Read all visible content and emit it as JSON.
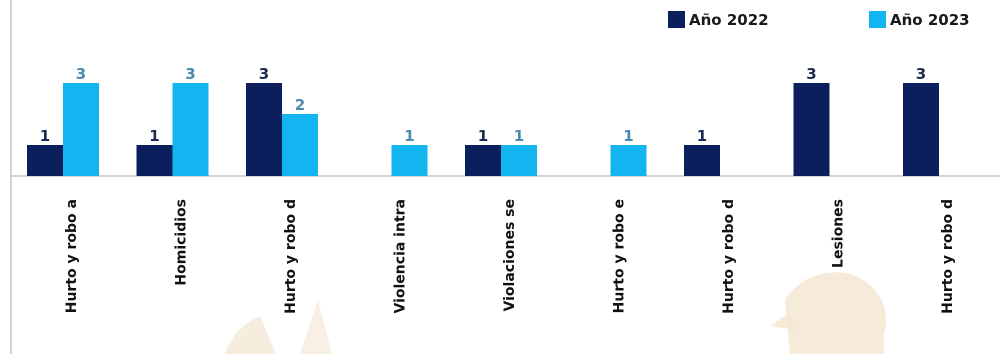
{
  "colors": {
    "series_2022": "#0b1f5c",
    "series_2023": "#12b5ef",
    "label_2022": "#1d2a52",
    "label_2023": "#4a8ab0",
    "frame": "#a8a8a8",
    "watermark": "#f4e6d2"
  },
  "chart_data": {
    "type": "bar",
    "categories": [
      "Hurto y robo a",
      "Homicidios",
      "Hurto y robo d",
      "Violencia intra",
      "Violaciones se",
      "Hurto y robo e",
      "Hurto y robo d",
      "Lesiones",
      "Hurto y robo d"
    ],
    "series": [
      {
        "name": "Año 2022",
        "values": [
          1,
          1,
          3,
          0,
          1,
          0,
          1,
          3,
          3
        ]
      },
      {
        "name": "Año 2023",
        "values": [
          3,
          3,
          2,
          1,
          1,
          1,
          0,
          0,
          0
        ]
      }
    ],
    "value_labels": [
      [
        "1",
        "1",
        "3",
        "",
        "1",
        "",
        "1",
        "3",
        "3"
      ],
      [
        "3",
        "3",
        "2",
        "1",
        "1",
        "1",
        "",
        "",
        ""
      ]
    ],
    "ylim": [
      0,
      3
    ],
    "legend_position": "top-right",
    "grid": false,
    "title": "",
    "xlabel": "",
    "ylabel": ""
  }
}
